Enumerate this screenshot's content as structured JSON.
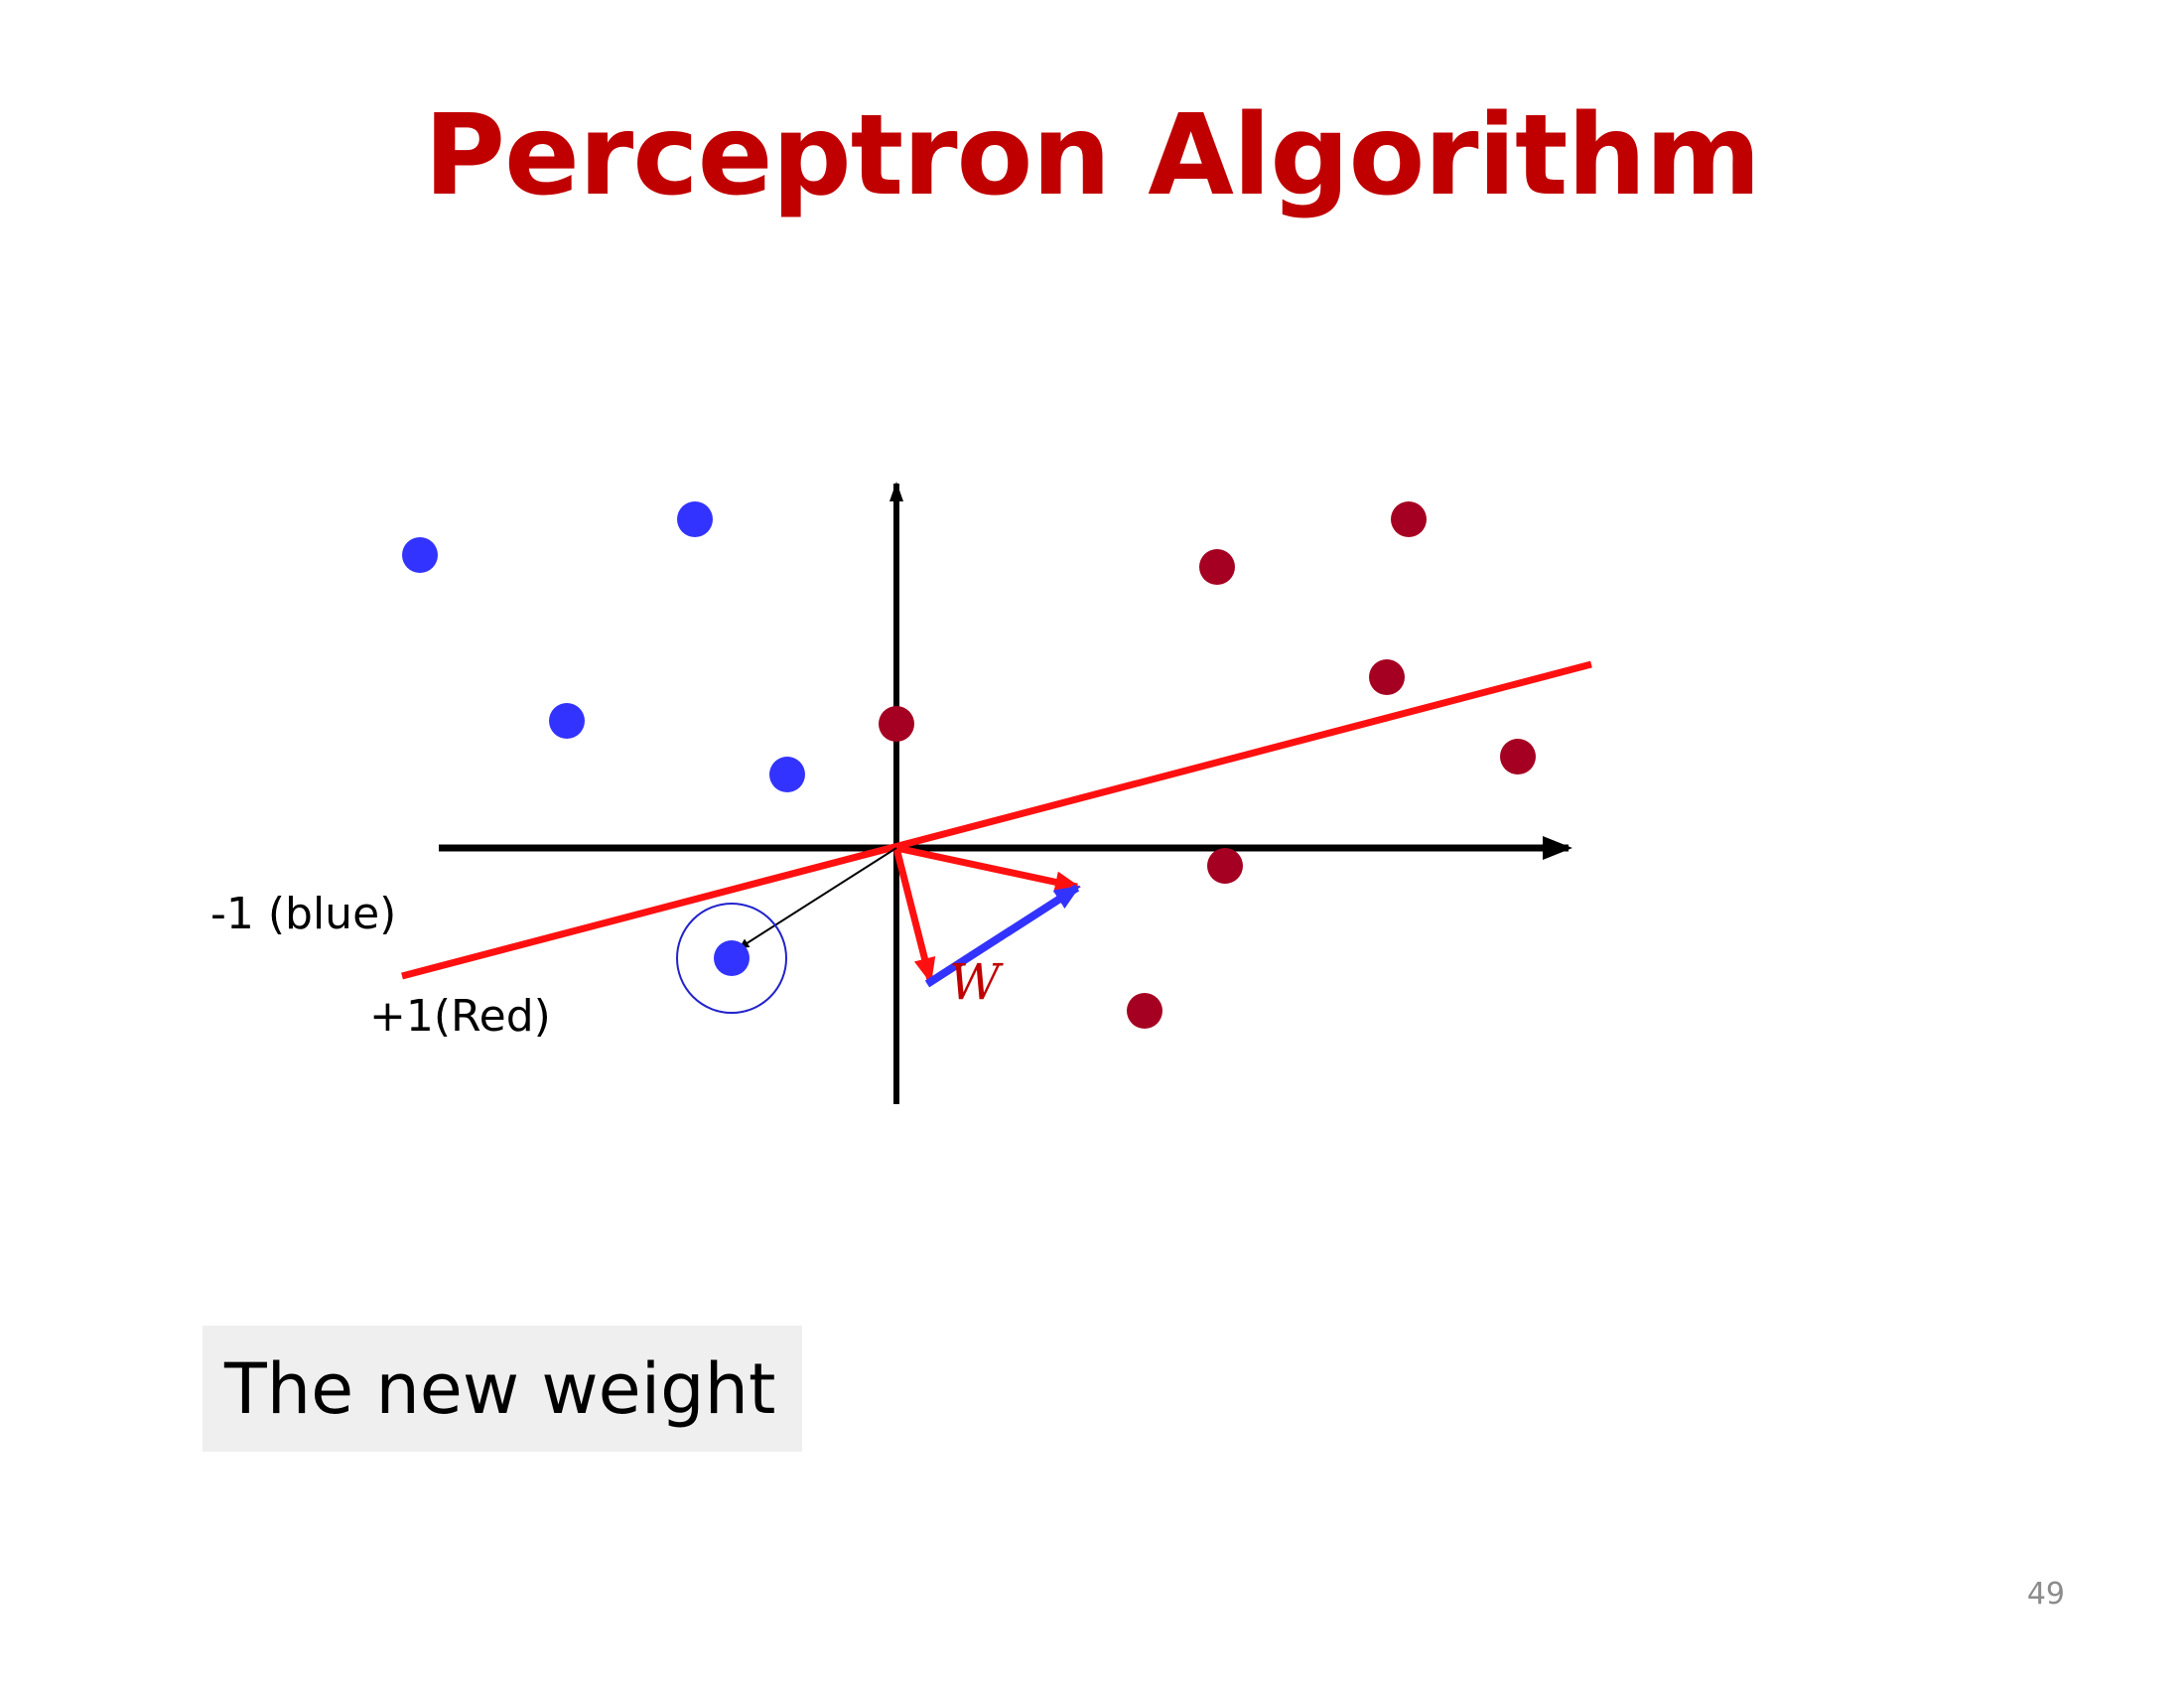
{
  "slide": {
    "title": "Perceptron Algorithm",
    "page_number": "49"
  },
  "diagram": {
    "class_labels": {
      "negative": "-1 (blue)",
      "positive": "+1(Red)"
    },
    "weight_label": "W",
    "colors": {
      "title": "#c00000",
      "blue_point": "#3333ff",
      "red_point": "#a50021",
      "boundary_line": "#ff1010",
      "update_vector": "#3333ff",
      "axes": "#000000"
    }
  },
  "caption": {
    "text": "The new weight"
  }
}
